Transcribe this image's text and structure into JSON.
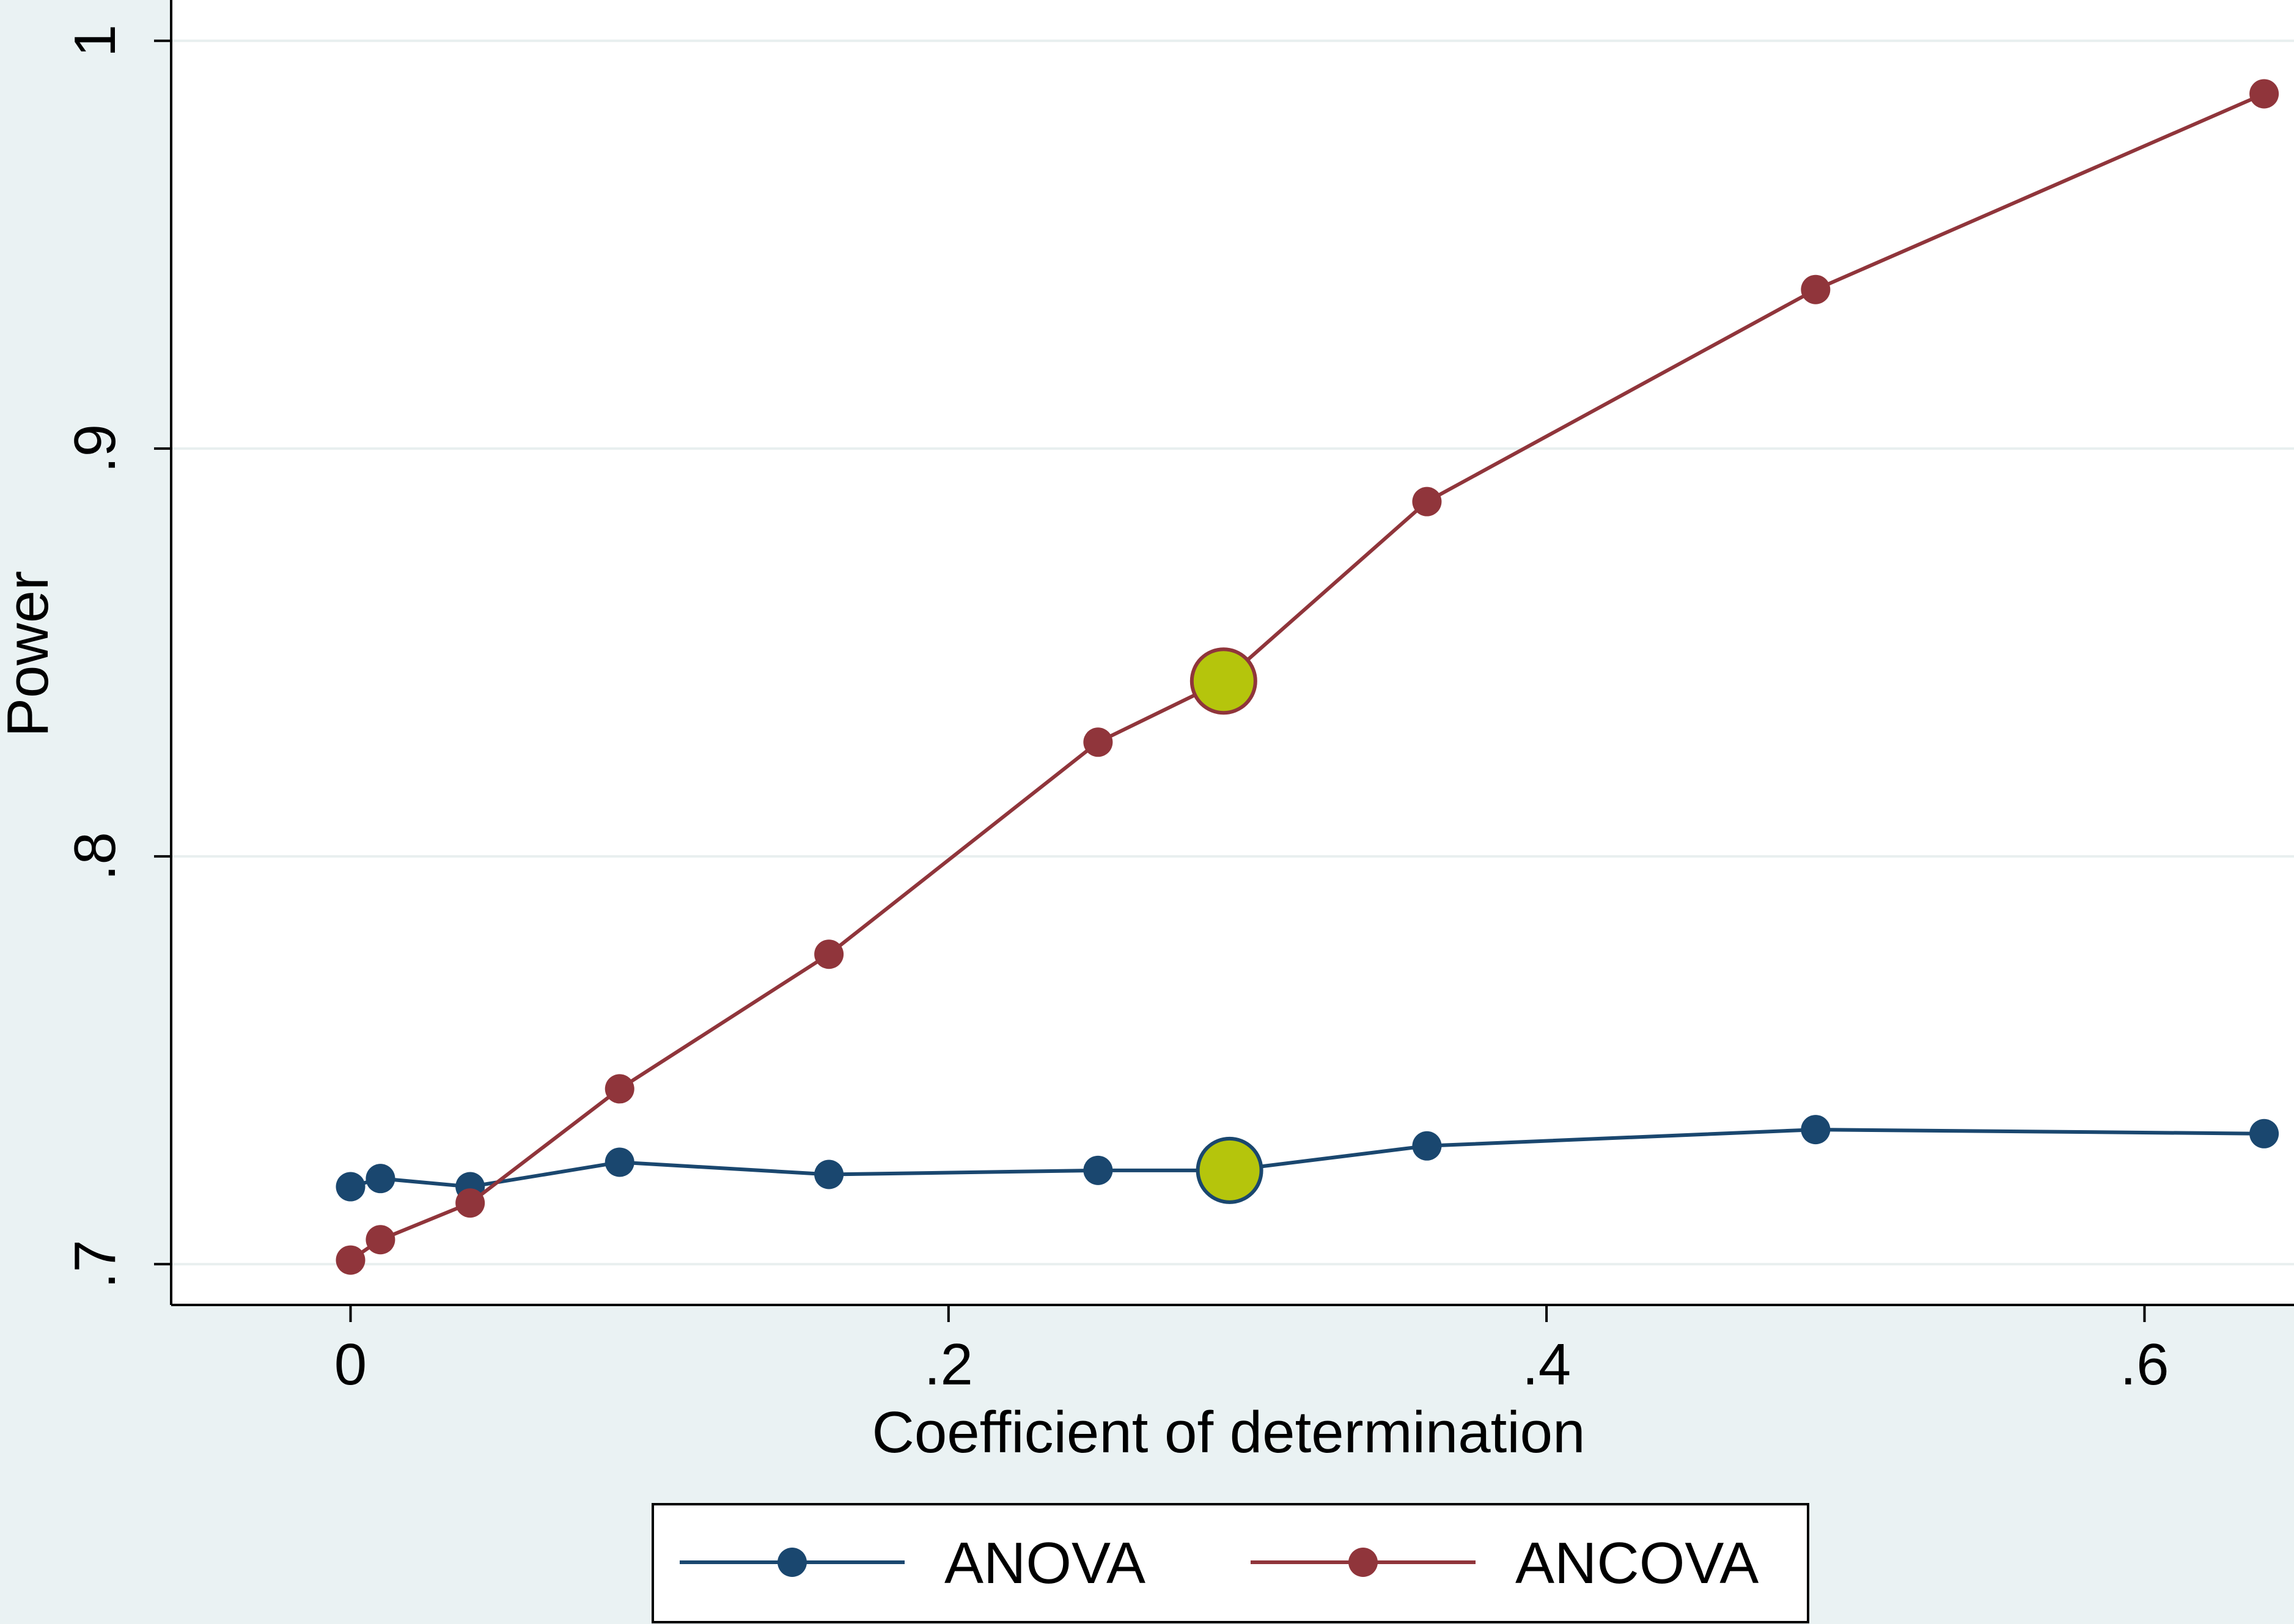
{
  "chart_data": {
    "type": "line",
    "title": "",
    "xlabel": "Coefficient of determination",
    "ylabel": "Power",
    "xlim": [
      -0.06,
      0.65
    ],
    "ylim": [
      0.69,
      1.01
    ],
    "grid": true,
    "x_ticks": [
      0,
      0.2,
      0.4,
      0.6
    ],
    "x_tick_labels": [
      "0",
      ".2",
      ".4",
      ".6"
    ],
    "y_ticks": [
      0.7,
      0.8,
      0.9,
      1.0
    ],
    "y_tick_labels": [
      ".7",
      ".8",
      ".9",
      "1"
    ],
    "legend_position": "bottom",
    "series": [
      {
        "name": "ANOVA",
        "color": "#1a476f",
        "x": [
          0,
          0.01,
          0.04,
          0.09,
          0.16,
          0.25,
          0.294,
          0.36,
          0.49,
          0.64
        ],
        "y": [
          0.719,
          0.721,
          0.719,
          0.725,
          0.722,
          0.723,
          0.723,
          0.729,
          0.733,
          0.732
        ],
        "highlight_x": 0.294
      },
      {
        "name": "ANCOVA",
        "color": "#90353b",
        "x": [
          0,
          0.01,
          0.04,
          0.09,
          0.16,
          0.25,
          0.292,
          0.36,
          0.49,
          0.64
        ],
        "y": [
          0.701,
          0.706,
          0.715,
          0.743,
          0.776,
          0.828,
          0.843,
          0.887,
          0.939,
          0.987
        ],
        "highlight_x": 0.292
      }
    ],
    "highlight_color": "#b5c50c"
  }
}
